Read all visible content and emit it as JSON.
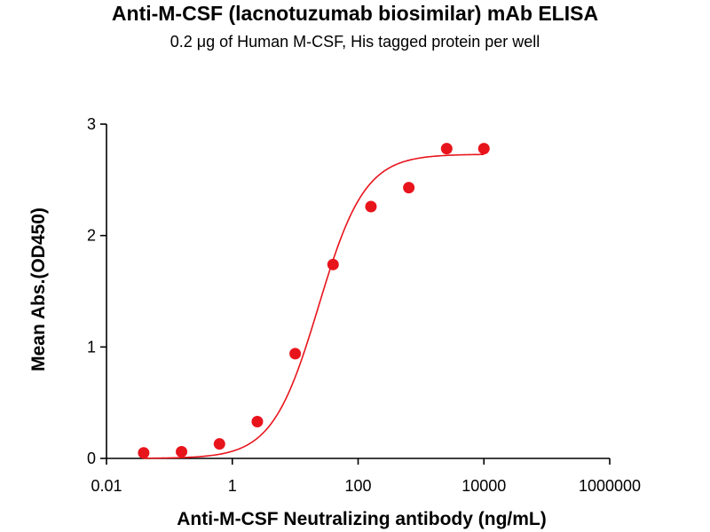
{
  "chart_data": {
    "type": "scatter",
    "title": "Anti-M-CSF (lacnotuzumab biosimilar) mAb ELISA",
    "subtitle": "0.2 μg of Human M-CSF, His tagged protein per well",
    "xlabel": "Anti-M-CSF Neutralizing antibody (ng/mL)",
    "ylabel": "Mean Abs.(OD450)",
    "x_scale": "log",
    "xlim": [
      0.01,
      1000000
    ],
    "ylim": [
      0,
      3
    ],
    "x_ticks": [
      {
        "value": 0.01,
        "label": "0.01"
      },
      {
        "value": 1,
        "label": "1"
      },
      {
        "value": 100,
        "label": "100"
      },
      {
        "value": 10000,
        "label": "10000"
      },
      {
        "value": 1000000,
        "label": "1000000"
      }
    ],
    "y_ticks": [
      {
        "value": 0,
        "label": "0"
      },
      {
        "value": 1,
        "label": "1"
      },
      {
        "value": 2,
        "label": "2"
      },
      {
        "value": 3,
        "label": "3"
      }
    ],
    "grid": false,
    "legend": "none",
    "color": "#e8141c",
    "series": [
      {
        "x": [
          0.0391,
          0.0781,
          0.156,
          0.3125,
          0.625,
          1.25,
          2.5,
          5,
          10,
          20,
          40,
          80,
          160,
          320,
          640,
          1280,
          2560,
          5120,
          10000
        ],
        "y": [
          0.0,
          0.01,
          0.02,
          0.03,
          0.04,
          0.06,
          0.13,
          0.33,
          0.94,
          1.74,
          2.26,
          2.43,
          2.78,
          2.78,
          2.78,
          2.78,
          2.78,
          2.78,
          2.78
        ],
        "points": [
          {
            "x": 0.039,
            "y": 0.05
          },
          {
            "x": 0.156,
            "y": 0.06
          },
          {
            "x": 0.625,
            "y": 0.13
          },
          {
            "x": 2.5,
            "y": 0.33
          },
          {
            "x": 10,
            "y": 0.94
          },
          {
            "x": 40,
            "y": 1.74
          },
          {
            "x": 160,
            "y": 2.26
          },
          {
            "x": 640,
            "y": 2.43
          },
          {
            "x": 2560,
            "y": 2.78
          },
          {
            "x": 10000,
            "y": 2.78
          }
        ],
        "fit": {
          "bottom": 0.0,
          "top": 2.73,
          "ec50": 23.5,
          "hill": 1.18
        }
      }
    ]
  }
}
